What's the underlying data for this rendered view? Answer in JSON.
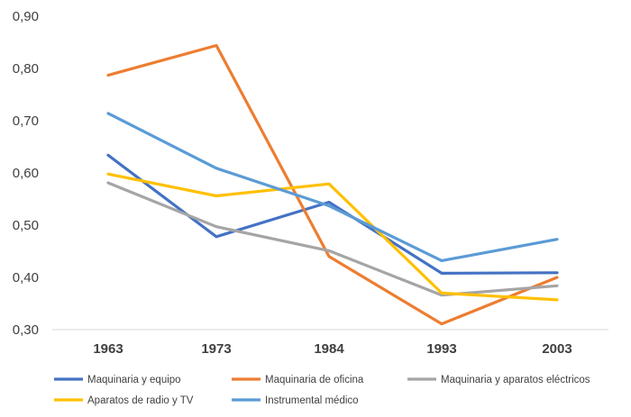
{
  "chart_data": {
    "type": "line",
    "categories": [
      "1963",
      "1973",
      "1984",
      "1993",
      "2003"
    ],
    "ylim": [
      0.3,
      0.9
    ],
    "yticks": [
      "0,90",
      "0,80",
      "0,70",
      "0,60",
      "0,50",
      "0,40",
      "0,30"
    ],
    "ytick_values": [
      0.9,
      0.8,
      0.7,
      0.6,
      0.5,
      0.4,
      0.3
    ],
    "grid": false,
    "legend_position": "bottom",
    "series": [
      {
        "name": "Maquinaria y equipo",
        "color": "#4472C4",
        "values": [
          0.634,
          0.478,
          0.544,
          0.408,
          0.409
        ]
      },
      {
        "name": "Maquinaria de oficina",
        "color": "#ED7D31",
        "values": [
          0.787,
          0.844,
          0.44,
          0.311,
          0.4
        ]
      },
      {
        "name": "Maquinaria y aparatos eléctricos",
        "color": "#A5A5A5",
        "values": [
          0.581,
          0.497,
          0.451,
          0.366,
          0.384
        ]
      },
      {
        "name": "Aparatos de radio y TV",
        "color": "#FFC000",
        "values": [
          0.598,
          0.556,
          0.579,
          0.37,
          0.357
        ]
      },
      {
        "name": "Instrumental médico",
        "color": "#5B9BD5",
        "values": [
          0.714,
          0.609,
          0.537,
          0.432,
          0.473
        ]
      }
    ]
  }
}
